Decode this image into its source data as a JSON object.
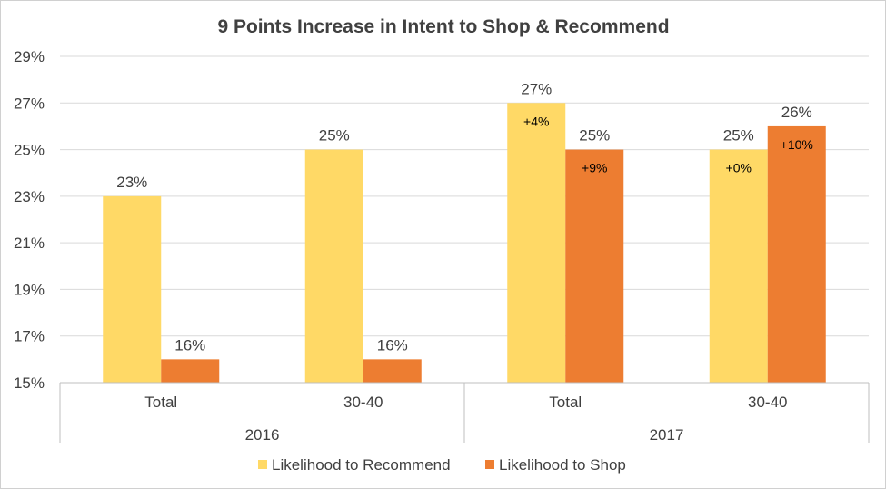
{
  "chart_data": {
    "type": "bar",
    "title": "9 Points Increase in Intent to Shop & Recommend",
    "xlabel": "",
    "ylabel": "",
    "ylim": [
      15,
      29
    ],
    "ytick_step": 2,
    "yticks": [
      "15%",
      "17%",
      "19%",
      "21%",
      "23%",
      "25%",
      "27%",
      "29%"
    ],
    "grid": true,
    "legend_position": "bottom",
    "categories": [
      "Total",
      "30-40",
      "Total",
      "30-40"
    ],
    "groups": [
      {
        "label": "2016",
        "span": [
          0,
          1
        ]
      },
      {
        "label": "2017",
        "span": [
          2,
          3
        ]
      }
    ],
    "series": [
      {
        "name": "Likelihood to Recommend",
        "color": "#FFD966",
        "values": [
          23,
          25,
          27,
          25
        ],
        "labels": [
          "23%",
          "25%",
          "27%",
          "25%"
        ],
        "deltas": [
          null,
          null,
          "+4%",
          "+0%"
        ]
      },
      {
        "name": "Likelihood to Shop",
        "color": "#ED7D31",
        "values": [
          16,
          16,
          25,
          26
        ],
        "labels": [
          "16%",
          "16%",
          "25%",
          "26%"
        ],
        "deltas": [
          null,
          null,
          "+9%",
          "+10%"
        ]
      }
    ]
  }
}
